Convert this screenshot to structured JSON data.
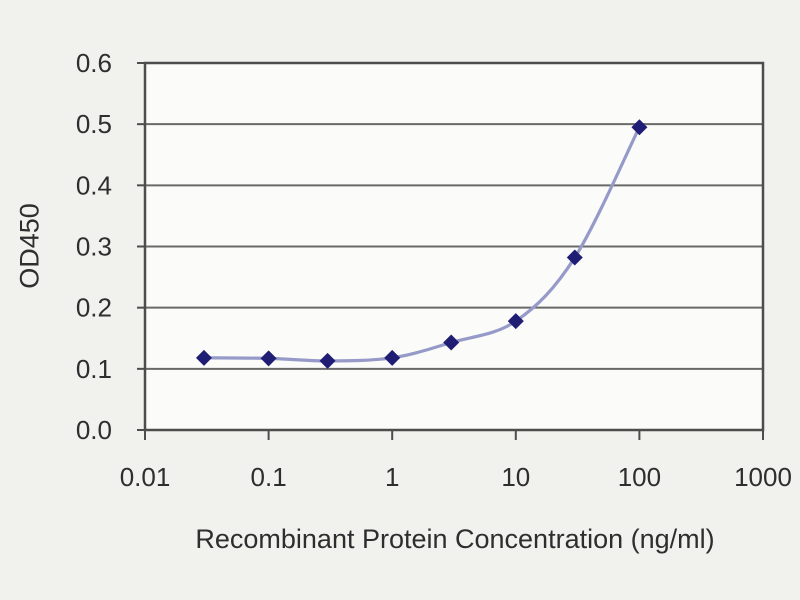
{
  "figure": {
    "background_color": "#f1f1ee",
    "plot_background_color": "#fbfbf9",
    "border_color": "#4d4d4d",
    "gridline_color": "#696969",
    "text_color": "#2e2e2e"
  },
  "chart_data": {
    "type": "line",
    "title": "",
    "xlabel": "Recombinant Protein Concentration (ng/ml)",
    "ylabel": "OD450",
    "x_scale": "log",
    "xlim": [
      0.01,
      1000
    ],
    "ylim": [
      0.0,
      0.6
    ],
    "x_ticks": [
      0.01,
      0.1,
      1,
      10,
      100,
      1000
    ],
    "x_tick_labels": [
      "0.01",
      "0.1",
      "1",
      "10",
      "100",
      "1000"
    ],
    "y_ticks": [
      0.0,
      0.1,
      0.2,
      0.3,
      0.4,
      0.5,
      0.6
    ],
    "y_tick_labels": [
      "0.0",
      "0.1",
      "0.2",
      "0.3",
      "0.4",
      "0.5",
      "0.6"
    ],
    "grid": "horizontal",
    "legend_position": "none",
    "series": [
      {
        "name": "OD450",
        "x": [
          0.03,
          0.1,
          0.3,
          1,
          3,
          10,
          30,
          100
        ],
        "y": [
          0.118,
          0.117,
          0.113,
          0.118,
          0.143,
          0.178,
          0.282,
          0.495
        ],
        "line_style": "smooth",
        "line_color": "#959ac9",
        "marker": "diamond",
        "marker_color": "#201d74"
      }
    ]
  }
}
